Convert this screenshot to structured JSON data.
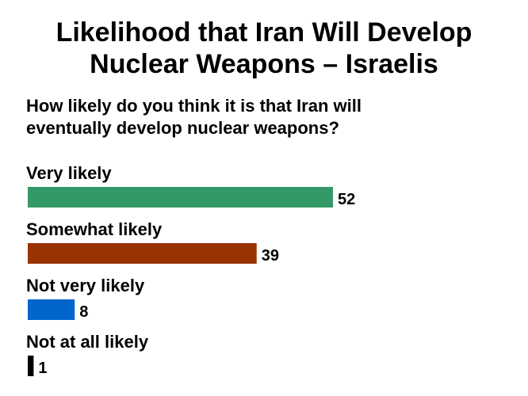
{
  "title_lines": [
    "Likelihood that Iran Will Develop",
    "Nuclear Weapons – Israelis"
  ],
  "subtitle_lines": [
    "How likely do you think it is that Iran will",
    "eventually develop nuclear weapons?"
  ],
  "chart_data": {
    "type": "bar",
    "orientation": "horizontal",
    "categories": [
      "Very likely",
      "Somewhat likely",
      "Not very likely",
      "Not at all likely"
    ],
    "values": [
      52,
      39,
      8,
      1
    ],
    "colors": [
      "#339966",
      "#993300",
      "#0066cc",
      "#000000"
    ],
    "title": "Likelihood that Iran Will Develop Nuclear Weapons – Israelis",
    "subtitle": "How likely do you think it is that Iran will eventually develop nuclear weapons?",
    "xlabel": "",
    "ylabel": "",
    "grid": false,
    "legend": "none",
    "data_labels": true
  }
}
